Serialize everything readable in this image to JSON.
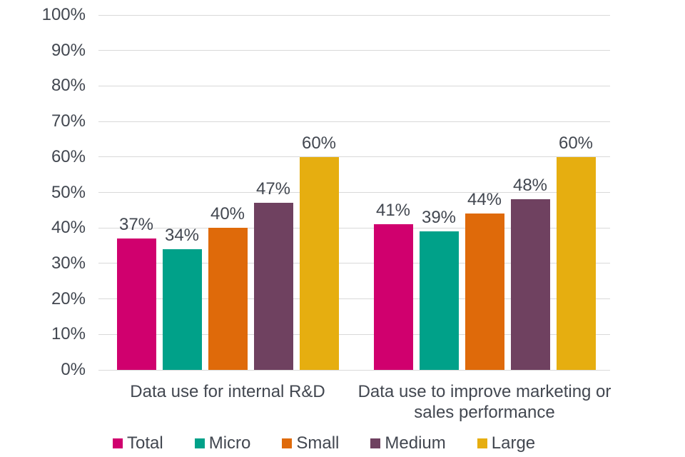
{
  "chart_data": {
    "type": "bar",
    "title": "",
    "categories": [
      "Data use for internal R&D",
      "Data use to improve marketing or sales performance"
    ],
    "series": [
      {
        "name": "Total",
        "color": "#d0006e",
        "values": [
          37,
          41
        ]
      },
      {
        "name": "Micro",
        "color": "#00a189",
        "values": [
          34,
          39
        ]
      },
      {
        "name": "Small",
        "color": "#df6a0a",
        "values": [
          40,
          44
        ]
      },
      {
        "name": "Medium",
        "color": "#6f4160",
        "values": [
          47,
          48
        ]
      },
      {
        "name": "Large",
        "color": "#e6ae10",
        "values": [
          60,
          60
        ]
      }
    ],
    "xlabel": "",
    "ylabel": "",
    "ylim": [
      0,
      100
    ],
    "ytick_step": 10,
    "ytick_labels": [
      "0%",
      "10%",
      "20%",
      "30%",
      "40%",
      "50%",
      "60%",
      "70%",
      "80%",
      "90%",
      "100%"
    ],
    "data_labels": [
      [
        "37%",
        "34%",
        "40%",
        "47%",
        "60%"
      ],
      [
        "41%",
        "39%",
        "44%",
        "48%",
        "60%"
      ]
    ],
    "grid": true,
    "legend_position": "bottom",
    "legend_labels": [
      "Total",
      "Micro",
      "Small",
      "Medium",
      "Large"
    ]
  },
  "style": {
    "text_color": "#424750",
    "grid_color": "#d9d9d9",
    "background": "#ffffff"
  }
}
